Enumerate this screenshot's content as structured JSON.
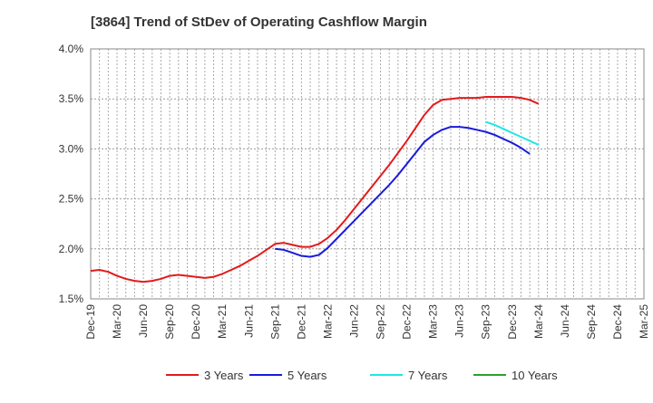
{
  "chart_data": {
    "type": "line",
    "title": "[3864]  Trend of StDev of Operating Cashflow Margin",
    "xlabel": "",
    "ylabel": "",
    "ylim": [
      1.5,
      4.0
    ],
    "y_ticks": [
      "1.5%",
      "2.0%",
      "2.5%",
      "3.0%",
      "3.5%",
      "4.0%"
    ],
    "y_tick_values": [
      1.5,
      2.0,
      2.5,
      3.0,
      3.5,
      4.0
    ],
    "x_ticks": [
      "Dec-19",
      "Mar-20",
      "Jun-20",
      "Sep-20",
      "Dec-20",
      "Mar-21",
      "Jun-21",
      "Sep-21",
      "Dec-21",
      "Mar-22",
      "Jun-22",
      "Sep-22",
      "Dec-22",
      "Mar-23",
      "Jun-23",
      "Sep-23",
      "Dec-23",
      "Mar-24",
      "Jun-24",
      "Sep-24",
      "Dec-24",
      "Mar-25"
    ],
    "months": [
      "Dec-19",
      "Jan-20",
      "Feb-20",
      "Mar-20",
      "Apr-20",
      "May-20",
      "Jun-20",
      "Jul-20",
      "Aug-20",
      "Sep-20",
      "Oct-20",
      "Nov-20",
      "Dec-20",
      "Jan-21",
      "Feb-21",
      "Mar-21",
      "Apr-21",
      "May-21",
      "Jun-21",
      "Jul-21",
      "Aug-21",
      "Sep-21",
      "Oct-21",
      "Nov-21",
      "Dec-21",
      "Jan-22",
      "Feb-22",
      "Mar-22",
      "Apr-22",
      "May-22",
      "Jun-22",
      "Jul-22",
      "Aug-22",
      "Sep-22",
      "Oct-22",
      "Nov-22",
      "Dec-22",
      "Jan-23",
      "Feb-23",
      "Mar-23",
      "Apr-23",
      "May-23",
      "Jun-23",
      "Jul-23",
      "Aug-23",
      "Sep-23",
      "Oct-23",
      "Nov-23",
      "Dec-23",
      "Jan-24",
      "Feb-24",
      "Mar-24",
      "Apr-24",
      "May-24",
      "Jun-24",
      "Jul-24",
      "Aug-24",
      "Sep-24",
      "Oct-24",
      "Nov-24",
      "Dec-24",
      "Jan-25",
      "Feb-25",
      "Mar-25"
    ],
    "series": [
      {
        "name": "3 Years",
        "color": "#e31a1c",
        "values": [
          1.78,
          1.79,
          1.77,
          1.73,
          1.7,
          1.68,
          1.67,
          1.68,
          1.7,
          1.73,
          1.74,
          1.73,
          1.72,
          1.71,
          1.72,
          1.75,
          1.79,
          1.83,
          1.88,
          1.93,
          1.99,
          2.05,
          2.06,
          2.04,
          2.02,
          2.02,
          2.05,
          2.11,
          2.19,
          2.29,
          2.4,
          2.51,
          2.62,
          2.73,
          2.84,
          2.96,
          3.08,
          3.21,
          3.34,
          3.44,
          3.49,
          3.5,
          3.51,
          3.51,
          3.51,
          3.52,
          3.52,
          3.52,
          3.52,
          3.51,
          3.49,
          3.45,
          null,
          null,
          null,
          null,
          null,
          null,
          null,
          null,
          null,
          null,
          null,
          null
        ]
      },
      {
        "name": "5 Years",
        "color": "#1a1adc",
        "values": [
          null,
          null,
          null,
          null,
          null,
          null,
          null,
          null,
          null,
          null,
          null,
          null,
          null,
          null,
          null,
          null,
          null,
          null,
          null,
          null,
          null,
          2.0,
          1.99,
          1.96,
          1.93,
          1.92,
          1.94,
          2.01,
          2.1,
          2.19,
          2.28,
          2.37,
          2.46,
          2.55,
          2.64,
          2.74,
          2.85,
          2.96,
          3.07,
          3.14,
          3.19,
          3.22,
          3.22,
          3.21,
          3.19,
          3.17,
          3.14,
          3.1,
          3.06,
          3.01,
          2.95,
          null,
          null,
          null,
          null,
          null,
          null,
          null,
          null,
          null,
          null,
          null,
          null,
          null
        ]
      },
      {
        "name": "7 Years",
        "color": "#1ee6e6",
        "values": [
          null,
          null,
          null,
          null,
          null,
          null,
          null,
          null,
          null,
          null,
          null,
          null,
          null,
          null,
          null,
          null,
          null,
          null,
          null,
          null,
          null,
          null,
          null,
          null,
          null,
          null,
          null,
          null,
          null,
          null,
          null,
          null,
          null,
          null,
          null,
          null,
          null,
          null,
          null,
          null,
          null,
          null,
          null,
          null,
          null,
          3.27,
          3.24,
          3.2,
          3.16,
          3.12,
          3.08,
          3.04,
          null,
          null,
          null,
          null,
          null,
          null,
          null,
          null,
          null,
          null,
          null,
          null
        ]
      },
      {
        "name": "10 Years",
        "color": "#2ca02c",
        "values": []
      }
    ],
    "legend_position": "bottom",
    "grid": true
  }
}
